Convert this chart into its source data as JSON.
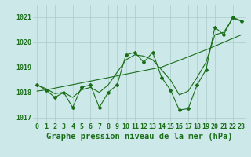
{
  "xlabel": "Graphe pression niveau de la mer (hPa)",
  "x": [
    0,
    1,
    2,
    3,
    4,
    5,
    6,
    7,
    8,
    9,
    10,
    11,
    12,
    13,
    14,
    15,
    16,
    17,
    18,
    19,
    20,
    21,
    22,
    23
  ],
  "y_main": [
    1018.3,
    1018.1,
    1017.8,
    1018.0,
    1017.4,
    1018.2,
    1018.3,
    1017.4,
    1018.0,
    1018.3,
    1019.5,
    1019.6,
    1019.2,
    1019.6,
    1018.6,
    1018.1,
    1017.3,
    1017.35,
    1018.3,
    1018.9,
    1020.6,
    1020.3,
    1021.0,
    1020.85
  ],
  "y_smooth1": [
    1018.3,
    1018.15,
    1017.95,
    1018.0,
    1017.8,
    1018.1,
    1018.2,
    1018.0,
    1018.3,
    1018.8,
    1019.3,
    1019.5,
    1019.45,
    1019.3,
    1018.9,
    1018.5,
    1017.9,
    1018.05,
    1018.6,
    1019.2,
    1020.3,
    1020.4,
    1020.95,
    1020.85
  ],
  "y_trend": [
    1018.05,
    1018.1,
    1018.17,
    1018.24,
    1018.31,
    1018.38,
    1018.45,
    1018.52,
    1018.59,
    1018.66,
    1018.73,
    1018.8,
    1018.87,
    1018.94,
    1019.01,
    1019.15,
    1019.28,
    1019.42,
    1019.56,
    1019.7,
    1019.85,
    1020.0,
    1020.15,
    1020.3
  ],
  "ylim": [
    1016.8,
    1021.5
  ],
  "yticks": [
    1017,
    1018,
    1019,
    1020,
    1021
  ],
  "xticks": [
    0,
    1,
    2,
    3,
    4,
    5,
    6,
    7,
    8,
    9,
    10,
    11,
    12,
    13,
    14,
    15,
    16,
    17,
    18,
    19,
    20,
    21,
    22,
    23
  ],
  "line_color": "#1a6e1a",
  "bg_color": "#cce8e8",
  "grid_color": "#aacccc",
  "label_color": "#1a6e1a",
  "tick_fontsize": 6,
  "xlabel_fontsize": 7.5
}
